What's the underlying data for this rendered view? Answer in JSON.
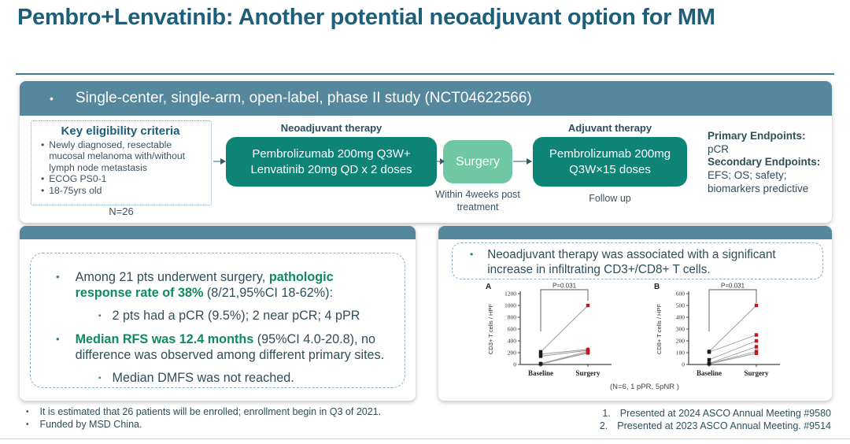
{
  "slide": {
    "title": "Pembro+Lenvatinib: Another potential neoadjuvant option for MM",
    "banner_bullet": "•",
    "banner": "Single-center, single-arm, open-label, phase II study (NCT04622566)"
  },
  "colors": {
    "title_text": "#1d5e78",
    "teal_header": "#55879d",
    "dark_green_box": "#0e8476",
    "light_green_box": "#6fc7a4",
    "green_bold_text": "#0e8a62",
    "body_text": "#2e4e5c"
  },
  "study": {
    "eligibility": {
      "title": "Key eligibility criteria",
      "items": [
        "Newly diagnosed, resectable mucosal melanoma with/without lymph node metastasis",
        "ECOG PS0-1",
        "18-75yrs old"
      ],
      "n_label": "N=26"
    },
    "neoadjuvant": {
      "label": "Neoadjuvant therapy",
      "box_line1": "Pembrolizumab 200mg Q3W+",
      "box_line2": "Lenvatinib 20mg QD x 2 doses"
    },
    "surgery": {
      "box": "Surgery",
      "caption": "Within 4weeks post treatment"
    },
    "adjuvant": {
      "label": "Adjuvant therapy",
      "box_line1": "Pembrolizumab 200mg",
      "box_line2": "Q3W×15 doses",
      "caption": "Follow up"
    },
    "endpoints": {
      "primary_label": "Primary Endpoints:",
      "primary_value": "pCR",
      "secondary_label": "Secondary Endpoints:",
      "secondary_value": "EFS; OS; safety; biomarkers predictive"
    }
  },
  "results": {
    "bullet1_pre": "Among 21 pts underwent surgery, ",
    "bullet1_bold": "pathologic response rate of 38%",
    "bullet1_post": " (8/21,95%CI 18-62%):",
    "bullet1_sub": "2 pts had a pCR (9.5%); 2 near pCR; 4 pPR",
    "bullet2_bold": "Median RFS was 12.4 months",
    "bullet2_post": " (95%CI 4.0-20.8), no difference was observed among different primary sites.",
    "bullet2_sub": "Median DMFS was not reached."
  },
  "tcells": {
    "bullet": "Neoadjuvant therapy was associated with a significant increase in infiltrating CD3+/CD8+ T cells.",
    "note": "(N=6, 1 pPR, 5pNR )"
  },
  "chart_data": [
    {
      "type": "line",
      "subtype": "paired-before-after",
      "panel": "A",
      "ylabel": "CD3+ T cells / HPF",
      "categories": [
        "Baseline",
        "Surgery"
      ],
      "ylim": [
        0,
        1200
      ],
      "yticks": [
        0,
        200,
        400,
        600,
        800,
        1000,
        1200
      ],
      "annotation": "P=0.031",
      "bracket": {
        "left_to": 560,
        "right_to": 1080
      },
      "series": [
        {
          "name": "pair-1",
          "values": [
            215,
            1000
          ]
        },
        {
          "name": "pair-2",
          "values": [
            175,
            255
          ]
        },
        {
          "name": "pair-3",
          "values": [
            140,
            240
          ]
        },
        {
          "name": "pair-4",
          "values": [
            15,
            225
          ]
        },
        {
          "name": "pair-5",
          "values": [
            10,
            205
          ]
        },
        {
          "name": "pair-6",
          "values": [
            8,
            195
          ]
        }
      ],
      "point_colors": {
        "baseline": "#1a1a1a",
        "surgery": "#c0161d"
      }
    },
    {
      "type": "line",
      "subtype": "paired-before-after",
      "panel": "B",
      "ylabel": "CD8+ T cells / HPF",
      "categories": [
        "Baseline",
        "Surgery"
      ],
      "ylim": [
        0,
        600
      ],
      "yticks": [
        0,
        100,
        200,
        300,
        400,
        500,
        600
      ],
      "annotation": "P=0.031",
      "bracket": {
        "left_to": 280,
        "right_to": 520
      },
      "series": [
        {
          "name": "pair-1",
          "values": [
            110,
            500
          ]
        },
        {
          "name": "pair-2",
          "values": [
            105,
            250
          ]
        },
        {
          "name": "pair-3",
          "values": [
            40,
            200
          ]
        },
        {
          "name": "pair-4",
          "values": [
            10,
            150
          ]
        },
        {
          "name": "pair-5",
          "values": [
            8,
            110
          ]
        },
        {
          "name": "pair-6",
          "values": [
            5,
            95
          ]
        }
      ],
      "point_colors": {
        "baseline": "#1a1a1a",
        "surgery": "#c0161d"
      }
    }
  ],
  "footnotes": {
    "left": [
      "It is estimated that 26 patients will be enrolled; enrollment begin in Q3 of 2021.",
      "Funded by MSD China."
    ],
    "right": [
      {
        "num": "1.",
        "text": "Presented at 2024 ASCO Annual Meeting #9580"
      },
      {
        "num": "2.",
        "text": "Presented at 2023 ASCO Annual Meeting. #9514"
      }
    ]
  }
}
